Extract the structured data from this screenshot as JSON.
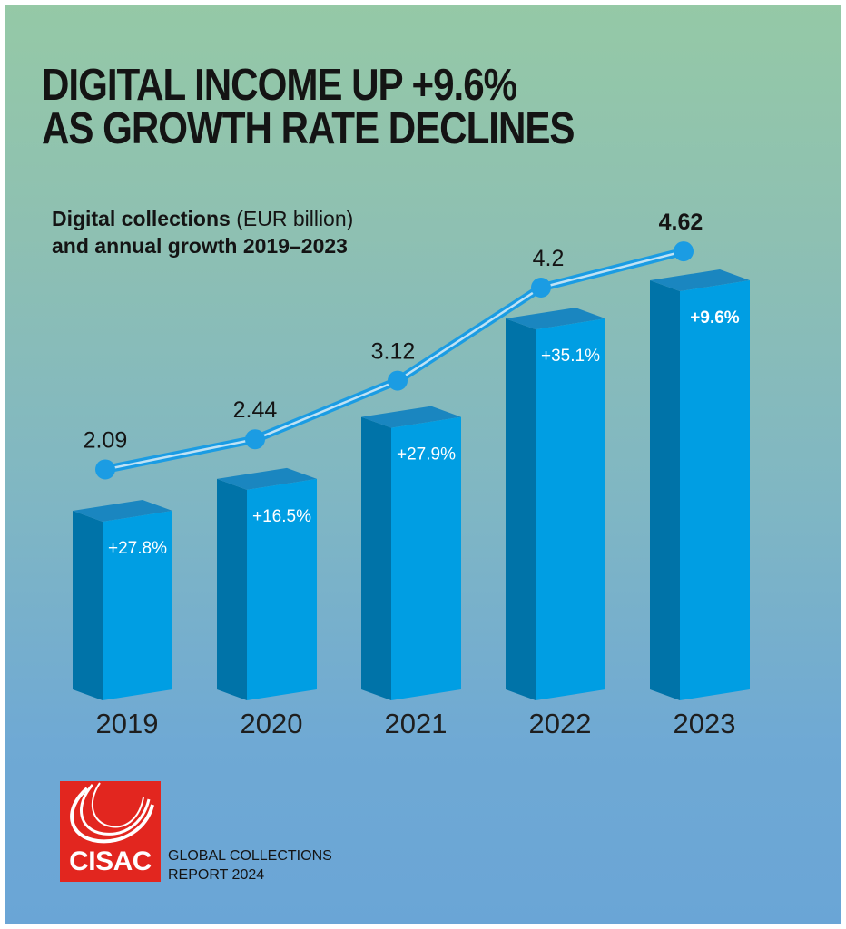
{
  "headline": {
    "line1": "DIGITAL INCOME UP +9.6%",
    "line2": "AS GROWTH RATE DECLINES"
  },
  "subtitle": {
    "line1_bold": "Digital collections",
    "line1_rest": " (EUR billion)",
    "line2": "and annual growth 2019–2023"
  },
  "colors": {
    "bar_front": "#009ee3",
    "bar_side": "#0073a8",
    "bar_top": "#1a86c0",
    "line": "#1b9ce3",
    "logo_red": "#e2261f"
  },
  "chart_data": {
    "type": "bar",
    "title": "Digital collections (EUR billion) and annual growth 2019–2023",
    "categories": [
      "2019",
      "2020",
      "2021",
      "2022",
      "2023"
    ],
    "values": [
      2.09,
      2.44,
      3.12,
      4.2,
      4.62
    ],
    "value_labels": [
      "2.09",
      "2.44",
      "3.12",
      "4.2",
      "4.62"
    ],
    "growth": [
      "+27.8%",
      "+16.5%",
      "+27.9%",
      "+35.1%",
      "+9.6%"
    ],
    "overlay": "line connecting bar values",
    "grid": false
  },
  "logo": {
    "text": "CISAC"
  },
  "report": {
    "line1": "GLOBAL COLLECTIONS",
    "line2": "REPORT 2024"
  }
}
